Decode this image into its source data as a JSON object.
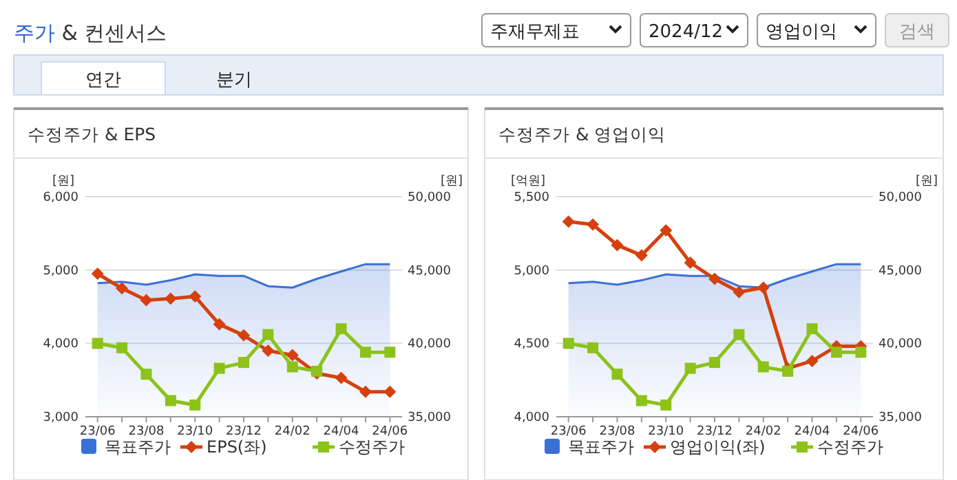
{
  "chart_data": [
    {
      "type": "other",
      "title": "주가 & 컨센서스",
      "annotations": [
        "주재무제표",
        "2024/12",
        "영업이익",
        "검색",
        "연간",
        "분기"
      ]
    },
    {
      "type": "line",
      "title": "수정주가 & EPS",
      "ylabel": "[원]",
      "y2label": "[원]",
      "categories": [
        "23/06",
        null,
        "23/08",
        null,
        "23/10",
        null,
        "23/12",
        null,
        "24/02",
        null,
        "24/04",
        null,
        "24/06"
      ],
      "ylim": [
        3000,
        6000
      ],
      "yticks": [
        {
          "value": 3000,
          "label": "3,000"
        },
        {
          "value": 4000,
          "label": "4,000"
        },
        {
          "value": 5000,
          "label": "5,000"
        },
        {
          "value": 6000,
          "label": "6,000"
        }
      ],
      "y2lim": [
        35000,
        50000
      ],
      "y2ticks": [
        {
          "value": 35000,
          "label": "35,000"
        },
        {
          "value": 40000,
          "label": "40,000"
        },
        {
          "value": 45000,
          "label": "45,000"
        },
        {
          "value": 50000,
          "label": "50,000"
        }
      ],
      "grid": "y",
      "legend": "bottom",
      "series": [
        {
          "name": "목표주가",
          "type": "area",
          "axis": "y2",
          "color": "#3a6fd8",
          "values": [
            44100,
            44200,
            44000,
            44300,
            44700,
            44600,
            44600,
            43900,
            43800,
            44400,
            44900,
            45400,
            45400
          ]
        },
        {
          "name": "EPS(좌)",
          "type": "line",
          "color": "#d5400e",
          "marker": "diamond",
          "values": [
            4950,
            4750,
            4590,
            4610,
            4640,
            4260,
            4110,
            3900,
            3840,
            3590,
            3530,
            3340,
            3340
          ]
        },
        {
          "name": "수정주가",
          "type": "line",
          "axis": "y2",
          "color": "#8cc21a",
          "marker": "square",
          "values": [
            40000,
            39700,
            37900,
            36100,
            35800,
            38300,
            38700,
            40600,
            38400,
            38100,
            41000,
            39400,
            39400
          ]
        }
      ]
    },
    {
      "type": "line",
      "title": "수정주가 & 영업이익",
      "ylabel": "[억원]",
      "y2label": "[원]",
      "categories": [
        "23/06",
        null,
        "23/08",
        null,
        "23/10",
        null,
        "23/12",
        null,
        "24/02",
        null,
        "24/04",
        null,
        "24/06"
      ],
      "ylim": [
        4000,
        5500
      ],
      "yticks": [
        {
          "value": 4000,
          "label": "4,000"
        },
        {
          "value": 4500,
          "label": "4,500"
        },
        {
          "value": 5000,
          "label": "5,000"
        },
        {
          "value": 5500,
          "label": "5,500"
        }
      ],
      "y2lim": [
        35000,
        50000
      ],
      "y2ticks": [
        {
          "value": 35000,
          "label": "35,000"
        },
        {
          "value": 40000,
          "label": "40,000"
        },
        {
          "value": 45000,
          "label": "45,000"
        },
        {
          "value": 50000,
          "label": "50,000"
        }
      ],
      "grid": "y",
      "legend": "bottom",
      "series": [
        {
          "name": "목표주가",
          "type": "area",
          "axis": "y2",
          "color": "#3a6fd8",
          "values": [
            44100,
            44200,
            44000,
            44300,
            44700,
            44600,
            44600,
            43900,
            43800,
            44400,
            44900,
            45400,
            45400
          ]
        },
        {
          "name": "영업이익(좌)",
          "type": "line",
          "color": "#d5400e",
          "marker": "diamond",
          "values": [
            5330,
            5310,
            5170,
            5100,
            5270,
            5050,
            4940,
            4850,
            4880,
            4330,
            4380,
            4480,
            4480
          ]
        },
        {
          "name": "수정주가",
          "type": "line",
          "axis": "y2",
          "color": "#8cc21a",
          "marker": "square",
          "values": [
            40000,
            39700,
            37900,
            36100,
            35800,
            38300,
            38700,
            40600,
            38400,
            38100,
            41000,
            39400,
            39400
          ]
        }
      ]
    }
  ]
}
